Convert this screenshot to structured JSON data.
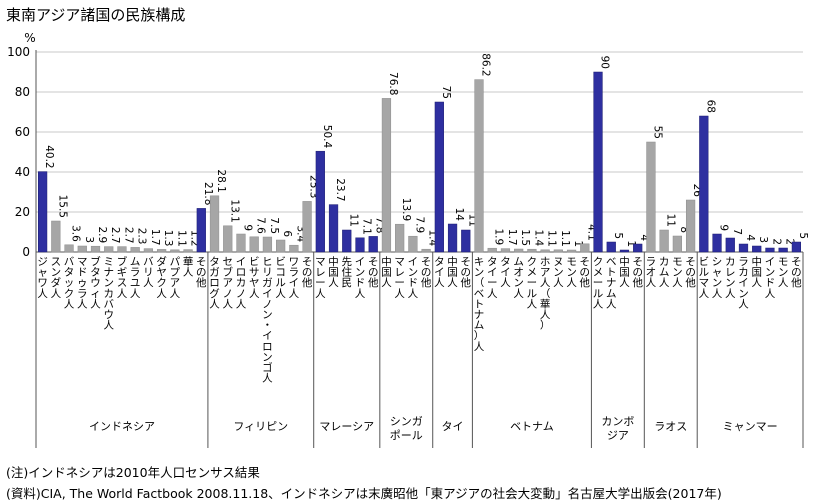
{
  "chart_data": {
    "type": "bar",
    "title": "東南アジア諸国の民族構成",
    "ylabel": "%",
    "ylim": [
      0,
      100
    ],
    "yticks": [
      0,
      20,
      40,
      60,
      80,
      100
    ],
    "grid": true,
    "colors": {
      "main": "#2e2fa0",
      "other": "#a6a6a6"
    },
    "groups": [
      {
        "name": "インドネシア",
        "bars": [
          {
            "label": "ジャワ人",
            "value": 40.2,
            "kind": "main"
          },
          {
            "label": "スンダ人",
            "value": 15.5,
            "kind": "other"
          },
          {
            "label": "バタック人",
            "value": 3.6,
            "kind": "other"
          },
          {
            "label": "マドゥラ人",
            "value": 3.0,
            "kind": "other"
          },
          {
            "label": "ブタウィ人",
            "value": 2.9,
            "kind": "other"
          },
          {
            "label": "ミナンカバウ人",
            "value": 2.7,
            "kind": "other"
          },
          {
            "label": "ブギス人",
            "value": 2.7,
            "kind": "other"
          },
          {
            "label": "ムラユ人",
            "value": 2.3,
            "kind": "other"
          },
          {
            "label": "バリ人",
            "value": 1.7,
            "kind": "other"
          },
          {
            "label": "ダヤク人",
            "value": 1.3,
            "kind": "other"
          },
          {
            "label": "パプア人",
            "value": 1.1,
            "kind": "other"
          },
          {
            "label": "華人",
            "value": 1.2,
            "kind": "other"
          },
          {
            "label": "その他",
            "value": 21.8,
            "kind": "main"
          }
        ]
      },
      {
        "name": "フィリピン",
        "bars": [
          {
            "label": "タガログ人",
            "value": 28.1,
            "kind": "other"
          },
          {
            "label": "セブアノ人",
            "value": 13.1,
            "kind": "other"
          },
          {
            "label": "イロカノ人",
            "value": 9,
            "kind": "other"
          },
          {
            "label": "ビサヤ人",
            "value": 7.6,
            "kind": "other"
          },
          {
            "label": "ヒリガイノン・イロンゴ人",
            "value": 7.5,
            "kind": "other"
          },
          {
            "label": "ビコル人",
            "value": 6,
            "kind": "other"
          },
          {
            "label": "ワライ人",
            "value": 3.4,
            "kind": "other"
          },
          {
            "label": "その他",
            "value": 25.3,
            "kind": "other"
          }
        ]
      },
      {
        "name": "マレーシア",
        "bars": [
          {
            "label": "マレー人",
            "value": 50.4,
            "kind": "main"
          },
          {
            "label": "中国人",
            "value": 23.7,
            "kind": "main"
          },
          {
            "label": "先住民",
            "value": 11,
            "kind": "main"
          },
          {
            "label": "インド人",
            "value": 7.1,
            "kind": "main"
          },
          {
            "label": "その他",
            "value": 7.8,
            "kind": "main"
          }
        ]
      },
      {
        "name": "シンガポール",
        "name_lines": [
          "シンガ",
          "ポール"
        ],
        "bars": [
          {
            "label": "中国人",
            "value": 76.8,
            "kind": "other"
          },
          {
            "label": "マレー人",
            "value": 13.9,
            "kind": "other"
          },
          {
            "label": "インド人",
            "value": 7.9,
            "kind": "other"
          },
          {
            "label": "その他",
            "value": 1.4,
            "kind": "other"
          }
        ]
      },
      {
        "name": "タイ",
        "bars": [
          {
            "label": "タイ人",
            "value": 75,
            "kind": "main"
          },
          {
            "label": "中国人",
            "value": 14,
            "kind": "main"
          },
          {
            "label": "その他",
            "value": 11,
            "kind": "main"
          }
        ]
      },
      {
        "name": "ベトナム",
        "bars": [
          {
            "label": "キン（ベトナム）人",
            "value": 86.2,
            "kind": "other"
          },
          {
            "label": "タイー人",
            "value": 1.9,
            "kind": "other"
          },
          {
            "label": "タイ人",
            "value": 1.7,
            "kind": "other"
          },
          {
            "label": "ムオン人",
            "value": 1.5,
            "kind": "other"
          },
          {
            "label": "クメール人",
            "value": 1.4,
            "kind": "other"
          },
          {
            "label": "ホア人（華人）",
            "value": 1.1,
            "kind": "other"
          },
          {
            "label": "ヌン人",
            "value": 1.1,
            "kind": "other"
          },
          {
            "label": "モン人",
            "value": 1,
            "kind": "other"
          },
          {
            "label": "その他",
            "value": 4.1,
            "kind": "other"
          }
        ]
      },
      {
        "name": "カンボジア",
        "name_lines": [
          "カンボ",
          "ジア"
        ],
        "bars": [
          {
            "label": "クメール人",
            "value": 90,
            "kind": "main"
          },
          {
            "label": "ベトナム人",
            "value": 5,
            "kind": "main"
          },
          {
            "label": "中国人",
            "value": 1,
            "kind": "main"
          },
          {
            "label": "その他",
            "value": 4,
            "kind": "main"
          }
        ]
      },
      {
        "name": "ラオス",
        "bars": [
          {
            "label": "ラオ人",
            "value": 55,
            "kind": "other"
          },
          {
            "label": "カム人",
            "value": 11,
            "kind": "other"
          },
          {
            "label": "モン人",
            "value": 8,
            "kind": "other"
          },
          {
            "label": "その他",
            "value": 26,
            "kind": "other"
          }
        ]
      },
      {
        "name": "ミャンマー",
        "bars": [
          {
            "label": "ビルマ人",
            "value": 68,
            "kind": "main"
          },
          {
            "label": "シャン人",
            "value": 9,
            "kind": "main"
          },
          {
            "label": "カレン人",
            "value": 7,
            "kind": "main"
          },
          {
            "label": "ラカイン人",
            "value": 4,
            "kind": "main"
          },
          {
            "label": "中国人",
            "value": 3,
            "kind": "main"
          },
          {
            "label": "インド人",
            "value": 2,
            "kind": "main"
          },
          {
            "label": "モン人",
            "value": 2,
            "kind": "main"
          },
          {
            "label": "その他",
            "value": 5,
            "kind": "main"
          }
        ]
      }
    ]
  },
  "notes": {
    "note1": "(注)インドネシアは2010年人口センサス結果",
    "note2": "(資料)CIA, The World Factbook 2008.11.18、インドネシアは末廣昭他「東アジアの社会大変動」名古屋大学出版会(2017年)"
  }
}
